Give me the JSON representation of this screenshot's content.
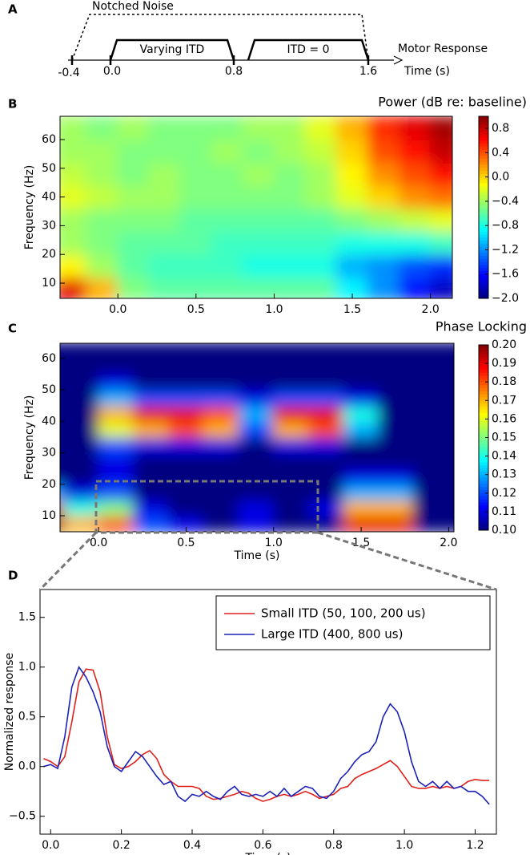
{
  "panel_labels": [
    "A",
    "B",
    "C",
    "D"
  ],
  "timeline": {
    "noise": "Notched Noise",
    "varying": "Varying ITD",
    "zero": "ITD = 0",
    "motor": "Motor Response",
    "time": "Time (s)",
    "ticks": [
      "-0.4",
      "0.0",
      "0.8",
      "1.6"
    ]
  },
  "chart_data": [
    {
      "type": "heatmap",
      "title": "Power (dB re: baseline)",
      "y_label": "Frequency (Hz)",
      "colormap": "jet",
      "x": [
        -0.3,
        -0.1,
        0.1,
        0.3,
        0.5,
        0.7,
        0.9,
        1.1,
        1.3,
        1.5,
        1.7,
        1.9,
        2.1
      ],
      "y": [
        8,
        16,
        24,
        32,
        40,
        48,
        56,
        64
      ],
      "z": [
        [
          0.7,
          0.1,
          -0.5,
          -0.6,
          -0.6,
          -0.6,
          -0.6,
          -0.6,
          -0.6,
          -0.9,
          -1.2,
          -1.6,
          -1.8
        ],
        [
          -0.1,
          -0.4,
          -0.6,
          -0.7,
          -0.7,
          -0.7,
          -0.8,
          -0.8,
          -0.8,
          -1.1,
          -1.2,
          -1.4,
          -1.5
        ],
        [
          -0.4,
          -0.5,
          -0.6,
          -0.6,
          -0.6,
          -0.7,
          -0.7,
          -0.7,
          -0.7,
          -0.8,
          -0.8,
          -0.8,
          -0.7
        ],
        [
          -0.4,
          -0.5,
          -0.5,
          -0.5,
          -0.6,
          -0.6,
          -0.6,
          -0.6,
          -0.6,
          -0.5,
          -0.4,
          -0.3,
          -0.2
        ],
        [
          -0.2,
          -0.3,
          -0.4,
          -0.4,
          -0.5,
          -0.5,
          -0.5,
          -0.5,
          -0.4,
          -0.2,
          0.0,
          0.2,
          0.3
        ],
        [
          -0.3,
          -0.4,
          -0.5,
          -0.4,
          -0.5,
          -0.5,
          -0.4,
          -0.5,
          -0.4,
          -0.1,
          0.2,
          0.4,
          0.6
        ],
        [
          -0.4,
          -0.4,
          -0.5,
          -0.5,
          -0.5,
          -0.4,
          -0.5,
          -0.4,
          -0.3,
          0.0,
          0.4,
          0.6,
          0.8
        ],
        [
          -0.4,
          -0.5,
          -0.4,
          -0.5,
          -0.5,
          -0.5,
          -0.4,
          -0.4,
          -0.2,
          0.1,
          0.5,
          0.7,
          0.9
        ]
      ],
      "xlim": [
        -0.37,
        2.14
      ],
      "ylim": [
        4.7,
        68.1
      ],
      "xticks": [
        {
          "value": 0,
          "label": "0.0"
        },
        0.5,
        {
          "value": 1,
          "label": "1.0"
        },
        1.5,
        {
          "value": 2,
          "label": "2.0"
        }
      ],
      "yticks": [
        10,
        20,
        30,
        40,
        50,
        60
      ],
      "clim": [
        -2,
        1
      ],
      "cticks": [
        0.8,
        0.4,
        {
          "value": 0,
          "label": "0.0"
        },
        {
          "value": -0.4,
          "label": "−0.4"
        },
        {
          "value": -0.8,
          "label": "−0.8"
        },
        {
          "value": -1.2,
          "label": "−1.2"
        },
        {
          "value": -1.6,
          "label": "−1.6"
        },
        {
          "value": -2,
          "label": "−2.0"
        }
      ]
    },
    {
      "type": "heatmap",
      "title": "Phase Locking",
      "y_label": "Frequency (Hz)",
      "x_label": "Time (s)",
      "colormap": "jet",
      "x": [
        -0.3,
        -0.1,
        0.1,
        0.3,
        0.5,
        0.7,
        0.9,
        1.1,
        1.3,
        1.5,
        1.7,
        1.9,
        2.1
      ],
      "y": [
        7.5,
        12.5,
        17.5,
        22.5,
        27.5,
        32.5,
        37.5,
        42.5,
        47.5,
        52.5,
        57.5,
        62.5
      ],
      "z": [
        [
          0.2,
          0.17,
          0.18,
          0.12,
          0.11,
          0.1,
          0.11,
          0.1,
          0.1,
          0.19,
          0.19,
          0.1,
          0.1
        ],
        [
          0.19,
          0.14,
          0.15,
          0.11,
          0.1,
          0.1,
          0.11,
          0.1,
          0.11,
          0.17,
          0.17,
          0.1,
          0.1
        ],
        [
          0.13,
          0.11,
          0.12,
          0.1,
          0.1,
          0.1,
          0.1,
          0.1,
          0.1,
          0.13,
          0.13,
          0.1,
          0.1
        ],
        [
          0.1,
          0.1,
          0.11,
          0.1,
          0.1,
          0.1,
          0.1,
          0.1,
          0.1,
          0.11,
          0.11,
          0.1,
          0.1
        ],
        [
          0.1,
          0.1,
          0.11,
          0.1,
          0.1,
          0.1,
          0.1,
          0.1,
          0.1,
          0.1,
          0.1,
          0.1,
          0.1
        ],
        [
          0.1,
          0.1,
          0.12,
          0.11,
          0.11,
          0.11,
          0.1,
          0.11,
          0.11,
          0.1,
          0.1,
          0.1,
          0.1
        ],
        [
          0.1,
          0.1,
          0.16,
          0.17,
          0.18,
          0.17,
          0.12,
          0.17,
          0.18,
          0.13,
          0.1,
          0.1,
          0.1
        ],
        [
          0.1,
          0.1,
          0.17,
          0.19,
          0.19,
          0.18,
          0.13,
          0.19,
          0.19,
          0.14,
          0.1,
          0.1,
          0.1
        ],
        [
          0.1,
          0.1,
          0.13,
          0.12,
          0.12,
          0.12,
          0.11,
          0.12,
          0.12,
          0.11,
          0.1,
          0.1,
          0.1
        ],
        [
          0.1,
          0.1,
          0.11,
          0.1,
          0.1,
          0.1,
          0.1,
          0.1,
          0.1,
          0.1,
          0.1,
          0.1,
          0.1
        ],
        [
          0.1,
          0.1,
          0.1,
          0.1,
          0.1,
          0.1,
          0.1,
          0.1,
          0.1,
          0.1,
          0.1,
          0.1,
          0.1
        ],
        [
          0.1,
          0.1,
          0.1,
          0.1,
          0.1,
          0.1,
          0.1,
          0.1,
          0.1,
          0.1,
          0.1,
          0.1,
          0.1
        ]
      ],
      "xlim": [
        -0.22,
        2.03
      ],
      "ylim": [
        4.9,
        64.8
      ],
      "xticks": [
        {
          "value": 0,
          "label": "0.0"
        },
        0.5,
        {
          "value": 1,
          "label": "1.0"
        },
        1.5,
        {
          "value": 2,
          "label": "2.0"
        }
      ],
      "yticks": [
        10,
        20,
        30,
        40,
        50,
        60
      ],
      "clim": [
        0.1,
        0.2
      ],
      "cticks": [
        {
          "value": 0.2,
          "label": "0.20"
        },
        0.19,
        0.18,
        0.17,
        0.16,
        0.15,
        0.14,
        0.13,
        0.12,
        0.11,
        {
          "value": 0.1,
          "label": "0.10"
        }
      ]
    },
    {
      "type": "line",
      "x_label": "Time (s)",
      "y_label": "Normalized response",
      "x": [
        -0.02,
        0,
        0.02,
        0.04,
        0.06,
        0.08,
        0.1,
        0.12,
        0.14,
        0.16,
        0.18,
        0.2,
        0.22,
        0.24,
        0.26,
        0.28,
        0.3,
        0.32,
        0.34,
        0.36,
        0.38,
        0.4,
        0.42,
        0.44,
        0.46,
        0.48,
        0.5,
        0.52,
        0.54,
        0.56,
        0.58,
        0.6,
        0.62,
        0.64,
        0.66,
        0.68,
        0.7,
        0.72,
        0.74,
        0.76,
        0.78,
        0.8,
        0.82,
        0.84,
        0.86,
        0.88,
        0.9,
        0.92,
        0.94,
        0.96,
        0.98,
        1,
        1.02,
        1.04,
        1.06,
        1.08,
        1.1,
        1.12,
        1.14,
        1.16,
        1.18,
        1.2,
        1.22,
        1.24
      ],
      "series": [
        {
          "name": "Small ITD (50, 100, 200 us)",
          "color": "#e0201b",
          "values": [
            0.08,
            0.05,
            0,
            0.1,
            0.45,
            0.85,
            0.98,
            0.97,
            0.75,
            0.3,
            0.02,
            -0.02,
            0,
            0.05,
            0.12,
            0.16,
            0.08,
            -0.08,
            -0.15,
            -0.2,
            -0.2,
            -0.2,
            -0.22,
            -0.3,
            -0.33,
            -0.32,
            -0.3,
            -0.28,
            -0.25,
            -0.27,
            -0.32,
            -0.35,
            -0.33,
            -0.3,
            -0.28,
            -0.3,
            -0.28,
            -0.25,
            -0.28,
            -0.32,
            -0.3,
            -0.28,
            -0.22,
            -0.2,
            -0.12,
            -0.08,
            -0.05,
            -0.02,
            0.02,
            0.06,
            0,
            -0.1,
            -0.2,
            -0.22,
            -0.22,
            -0.2,
            -0.22,
            -0.2,
            -0.22,
            -0.2,
            -0.15,
            -0.13,
            -0.14,
            -0.14
          ]
        },
        {
          "name": "Large ITD (400, 800 us)",
          "color": "#1c22b8",
          "values": [
            0,
            0.02,
            -0.02,
            0.3,
            0.8,
            1,
            0.9,
            0.75,
            0.55,
            0.2,
            0,
            -0.05,
            0.05,
            0.15,
            0.1,
            0,
            -0.1,
            -0.18,
            -0.15,
            -0.3,
            -0.35,
            -0.28,
            -0.3,
            -0.25,
            -0.3,
            -0.33,
            -0.25,
            -0.2,
            -0.28,
            -0.3,
            -0.28,
            -0.3,
            -0.25,
            -0.3,
            -0.22,
            -0.3,
            -0.25,
            -0.2,
            -0.22,
            -0.3,
            -0.32,
            -0.25,
            -0.12,
            -0.05,
            0.05,
            0.12,
            0.15,
            0.25,
            0.5,
            0.63,
            0.55,
            0.35,
            0.05,
            -0.15,
            -0.2,
            -0.15,
            -0.22,
            -0.15,
            -0.22,
            -0.2,
            -0.25,
            -0.25,
            -0.3,
            -0.38
          ]
        }
      ],
      "xlim": [
        -0.03,
        1.26
      ],
      "ylim": [
        -0.68,
        1.78
      ],
      "xticks": [
        {
          "value": 0,
          "label": "0.0"
        },
        0.2,
        0.4,
        0.6,
        0.8,
        {
          "value": 1,
          "label": "1.0"
        },
        1.2
      ],
      "yticks": [
        {
          "value": -0.5,
          "label": "−0.5"
        },
        {
          "value": 0,
          "label": "0.0"
        },
        0.5,
        {
          "value": 1,
          "label": "1.0"
        },
        1.5
      ],
      "legend": "upper right"
    }
  ]
}
